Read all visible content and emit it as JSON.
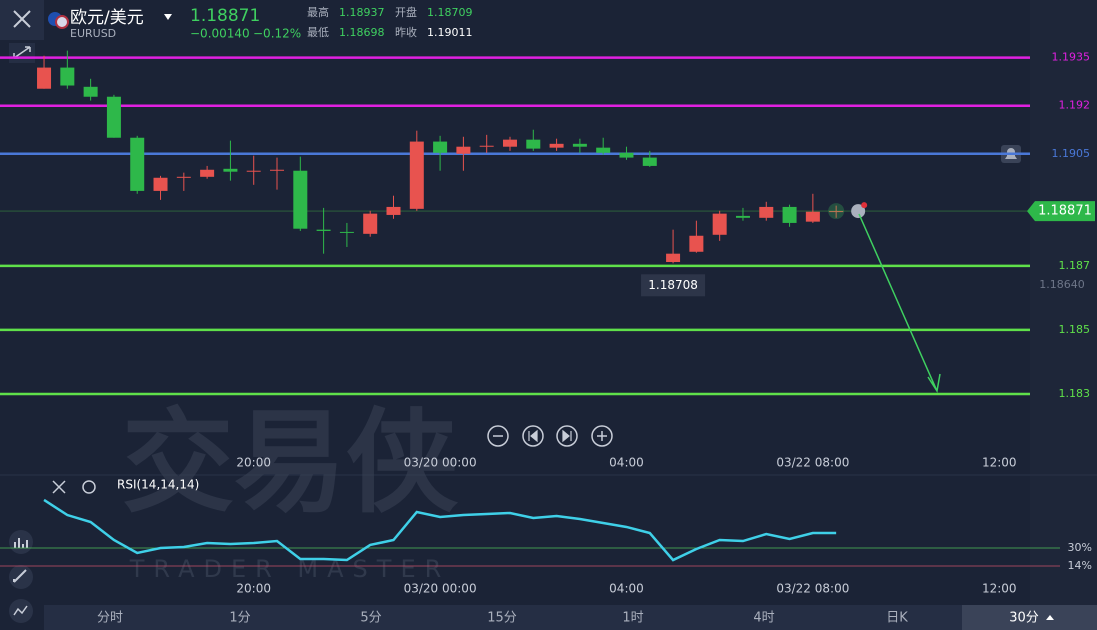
{
  "header": {
    "name": "欧元/美元",
    "symbol": "EURUSD",
    "price": "1.18871",
    "change": "−0.00140",
    "change_pct": "−0.12%",
    "stats": [
      {
        "label": "最高",
        "value": "1.18937"
      },
      {
        "label": "开盘",
        "value": "1.18709"
      },
      {
        "label": "最低",
        "value": "1.18698"
      },
      {
        "label": "昨收",
        "value": "1.19011"
      }
    ]
  },
  "watermark": {
    "title": "交易侠",
    "subtitle": "TRADER MASTER"
  },
  "chart_data": [
    {
      "type": "candlestick",
      "up_color": "#e8534f",
      "down_color": "#2eb84a",
      "open": [
        1.19253,
        1.19319,
        1.19259,
        1.19228,
        1.191,
        1.18934,
        1.18975,
        1.18978,
        1.19003,
        1.18994,
        1.18997,
        1.18997,
        1.18813,
        1.18806,
        1.188,
        1.18859,
        1.18878,
        1.19088,
        1.1905,
        1.19072,
        1.19072,
        1.19094,
        1.19069,
        1.19081,
        1.19069,
        1.19053,
        1.19038,
        1.18712,
        1.18744,
        1.18797,
        1.18856,
        1.1885,
        1.18884,
        1.18838,
        1.18869
      ],
      "high": [
        1.19356,
        1.19372,
        1.19284,
        1.19234,
        1.19106,
        1.18981,
        1.18991,
        1.19012,
        1.19091,
        1.19044,
        1.19038,
        1.19041,
        1.18881,
        1.18834,
        1.18872,
        1.18919,
        1.19122,
        1.19106,
        1.19103,
        1.19109,
        1.19103,
        1.19125,
        1.19097,
        1.19097,
        1.191,
        1.19072,
        1.19059,
        1.18813,
        1.18841,
        1.18872,
        1.18881,
        1.189,
        1.18891,
        1.18925,
        1.18888
      ],
      "low": [
        1.19253,
        1.19253,
        1.19216,
        1.191,
        1.18925,
        1.18906,
        1.18934,
        1.18972,
        1.18966,
        1.18953,
        1.18938,
        1.18809,
        1.18738,
        1.18759,
        1.18791,
        1.18847,
        1.18872,
        1.18997,
        1.18997,
        1.19053,
        1.19059,
        1.19059,
        1.19059,
        1.19053,
        1.19047,
        1.19031,
        1.19009,
        1.18708,
        1.18741,
        1.18778,
        1.18841,
        1.18841,
        1.18822,
        1.18834,
        1.1885
      ],
      "close": [
        1.19319,
        1.19263,
        1.19228,
        1.191,
        1.18934,
        1.18975,
        1.18978,
        1.19,
        1.18994,
        1.18997,
        1.19,
        1.18816,
        1.18809,
        1.18806,
        1.18863,
        1.18884,
        1.19088,
        1.19053,
        1.19072,
        1.19075,
        1.19094,
        1.19066,
        1.19081,
        1.19072,
        1.19053,
        1.19038,
        1.19012,
        1.18738,
        1.18794,
        1.18863,
        1.1885,
        1.18884,
        1.18834,
        1.18869,
        1.18871
      ],
      "low_label_index": 27,
      "last": 1.18871,
      "last_color": "#2eb84a",
      "xlim": [
        -1.89,
        42.32
      ],
      "xticks": [
        {
          "value": 9,
          "label": "20:00"
        },
        {
          "value": 17,
          "label": "03/20 00:00"
        },
        {
          "value": 25,
          "label": "04:00"
        },
        {
          "value": 33,
          "label": "03/22 08:00"
        },
        {
          "value": 41,
          "label": "12:00"
        }
      ],
      "ylim": [
        1.1825,
        1.1953
      ],
      "yticks": [
        {
          "value": 1.1864,
          "label": "1.18640"
        }
      ],
      "hlines": [
        {
          "value": 1.1935,
          "color": "#e020e0"
        },
        {
          "value": 1.192,
          "color": "#e020e0"
        },
        {
          "value": 1.1905,
          "color": "#4a78d8"
        },
        {
          "value": 1.187,
          "color": "#5fe04a"
        },
        {
          "value": 1.185,
          "color": "#5fe04a"
        },
        {
          "value": 1.183,
          "color": "#5fe04a"
        }
      ]
    },
    {
      "type": "line",
      "name": "RSI(14,14,14)",
      "color": "#3fd0e8",
      "values": [
        72.7,
        59.3,
        53.1,
        37.1,
        25.6,
        30,
        30.9,
        34.4,
        33.6,
        34.4,
        36.2,
        20.2,
        20.2,
        19.3,
        32.7,
        37.1,
        62,
        57.6,
        59.3,
        60.2,
        61.1,
        56.7,
        58.4,
        55.8,
        52.2,
        48.7,
        43.3,
        19.3,
        29.1,
        37.1,
        36.2,
        42.4,
        38,
        43.3,
        43.3
      ],
      "xlim": [
        -1.89,
        42.32
      ],
      "xticks": [
        {
          "value": 9,
          "label": "20:00"
        },
        {
          "value": 17,
          "label": "03/20 00:00"
        },
        {
          "value": 25,
          "label": "04:00"
        },
        {
          "value": 33,
          "label": "03/22 08:00"
        },
        {
          "value": 41,
          "label": "12:00"
        }
      ],
      "ylim": [
        6,
        82
      ],
      "yticks": [
        {
          "value": 30,
          "label": "30%",
          "color": "#4fbf5a"
        },
        {
          "value": 14,
          "label": "14%",
          "color": "#c9506a"
        }
      ]
    }
  ],
  "tabs": [
    "分时",
    "1分",
    "5分",
    "15分",
    "1时",
    "4时",
    "日K",
    "30分"
  ],
  "selected_tab": 7
}
